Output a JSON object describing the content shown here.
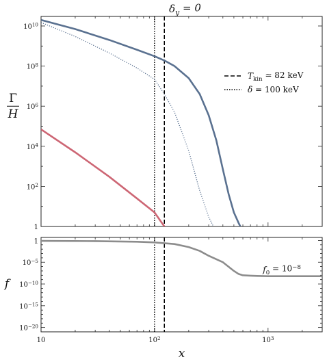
{
  "chart_data": [
    {
      "type": "line",
      "title": "δ_y = 0",
      "ylabel": "Γ/H",
      "xlabel": "",
      "xscale": "log",
      "yscale": "log",
      "xlim": [
        10,
        3000
      ],
      "ylim": [
        1,
        30000000000.0
      ],
      "xticks": [
        10,
        100,
        1000
      ],
      "yticks": [
        1,
        100,
        10000,
        1000000,
        100000000,
        10000000000
      ],
      "ytick_labels": [
        "1",
        "10^2",
        "10^4",
        "10^6",
        "10^8",
        "10^10"
      ],
      "legend_position": "center-right",
      "vlines": [
        {
          "name": "T_kin ≃ 82 keV",
          "x": 122,
          "style": "dashed",
          "color": "#000000"
        },
        {
          "name": "δ = 100 keV",
          "x": 100,
          "style": "dotted",
          "color": "#000000"
        }
      ],
      "series": [
        {
          "name": "",
          "style": "solid",
          "color": "#5a7190",
          "x": [
            10,
            20,
            40,
            70,
            100,
            122,
            150,
            200,
            250,
            300,
            350,
            400,
            450,
            500,
            550,
            570
          ],
          "y": [
            20000000000.0,
            7000000000.0,
            2000000000.0,
            650000000.0,
            310000000.0,
            190000000.0,
            100000000.0,
            25000000.0,
            4000000.0,
            350000.0,
            20000.0,
            700,
            40,
            5,
            1.5,
            1
          ]
        },
        {
          "name": "",
          "style": "dotted",
          "color": "#5a7190",
          "x": [
            10,
            20,
            40,
            70,
            100,
            122,
            150,
            200,
            250,
            300,
            330
          ],
          "y": [
            15000000000.0,
            3000000000.0,
            450000000.0,
            80000000.0,
            22000000.0,
            4000000.0,
            500000.0,
            6000.0,
            60,
            3,
            1
          ]
        },
        {
          "name": "",
          "style": "solid",
          "color": "#cd6674",
          "x": [
            10,
            20,
            40,
            70,
            100,
            122
          ],
          "y": [
            70000.0,
            5000.0,
            300,
            25,
            5,
            1
          ]
        }
      ]
    },
    {
      "type": "line",
      "title": "",
      "ylabel": "f",
      "xlabel": "x",
      "xscale": "log",
      "yscale": "log",
      "xlim": [
        10,
        3000
      ],
      "ylim": [
        1e-21,
        5
      ],
      "xticks": [
        10,
        100,
        1000
      ],
      "xtick_labels": [
        "10",
        "10^2",
        "10^3"
      ],
      "yticks": [
        1,
        1e-05,
        1e-10,
        1e-15,
        1e-20
      ],
      "ytick_labels": [
        "1",
        "10^−5",
        "10^−10",
        "10^−15",
        "10^−20"
      ],
      "annotations": [
        {
          "text": "f_0 = 10^−8",
          "x": 900,
          "y": 5e-08
        }
      ],
      "vlines": [
        {
          "x": 122,
          "style": "dashed",
          "color": "#000000"
        },
        {
          "x": 100,
          "style": "dotted",
          "color": "#000000"
        }
      ],
      "series": [
        {
          "name": "",
          "style": "solid",
          "color": "#8c8c8c",
          "x": [
            10,
            30,
            70,
            100,
            150,
            200,
            250,
            300,
            400,
            500,
            550,
            600,
            700,
            800,
            1000,
            1500,
            2000,
            3000
          ],
          "y": [
            0.8,
            0.7,
            0.5,
            0.35,
            0.15,
            0.03,
            0.004,
            0.0003,
            1e-05,
            1e-07,
            2e-08,
            1e-08,
            8e-09,
            7e-09,
            6e-09,
            6e-09,
            6e-09,
            6e-09
          ]
        }
      ]
    }
  ]
}
